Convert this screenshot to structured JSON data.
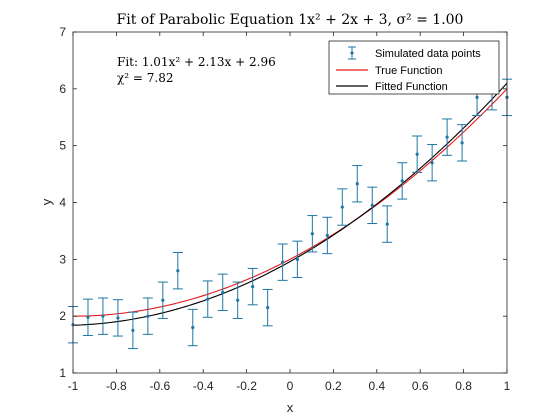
{
  "chart_data": {
    "type": "scatter",
    "title": "Fit of Parabolic Equation 1x² + 2x + 3, σ² = 1.00",
    "xlabel": "x",
    "ylabel": "y",
    "xlim": [
      -1,
      1
    ],
    "ylim": [
      1,
      7
    ],
    "x_ticks": [
      -1,
      -0.8,
      -0.6,
      -0.4,
      -0.2,
      0,
      0.2,
      0.4,
      0.6,
      0.8,
      1
    ],
    "x_tick_labels": [
      "-1",
      "-0.8",
      "-0.6",
      "-0.4",
      "-0.2",
      "0",
      "0.2",
      "0.4",
      "0.6",
      "0.8",
      "1"
    ],
    "y_ticks": [
      1,
      2,
      3,
      4,
      5,
      6,
      7
    ],
    "y_tick_labels": [
      "1",
      "2",
      "3",
      "4",
      "5",
      "6",
      "7"
    ],
    "grid": false,
    "legend_position": "top-right",
    "annotation": {
      "fit_text": "Fit: 1.01x² + 2.13x + 2.96",
      "chi_text": "χ² = 7.82"
    },
    "colors": {
      "data": "#1f77a4",
      "true_function": "#e41a1c",
      "fitted_function": "#000000",
      "axis": "#262626"
    },
    "series": [
      {
        "name": "Simulated data points",
        "kind": "errorbar",
        "error": 0.32,
        "x": [
          -1.0,
          -0.931,
          -0.862,
          -0.793,
          -0.724,
          -0.655,
          -0.586,
          -0.517,
          -0.448,
          -0.379,
          -0.31,
          -0.241,
          -0.172,
          -0.103,
          -0.034,
          0.034,
          0.103,
          0.172,
          0.241,
          0.31,
          0.379,
          0.448,
          0.517,
          0.586,
          0.655,
          0.724,
          0.793,
          0.862,
          0.931,
          1.0
        ],
        "y": [
          1.85,
          1.98,
          2.0,
          1.97,
          1.75,
          2.0,
          2.28,
          2.8,
          1.8,
          2.3,
          2.42,
          2.28,
          2.52,
          2.15,
          2.95,
          3.0,
          3.45,
          3.42,
          3.92,
          4.33,
          3.95,
          3.62,
          4.38,
          4.85,
          4.7,
          5.15,
          5.05,
          5.85,
          5.95,
          5.85
        ]
      },
      {
        "name": "True Function",
        "kind": "line",
        "coefficients": [
          1,
          2,
          3
        ]
      },
      {
        "name": "Fitted Function",
        "kind": "line",
        "coefficients": [
          1.01,
          2.13,
          2.96
        ]
      }
    ]
  }
}
